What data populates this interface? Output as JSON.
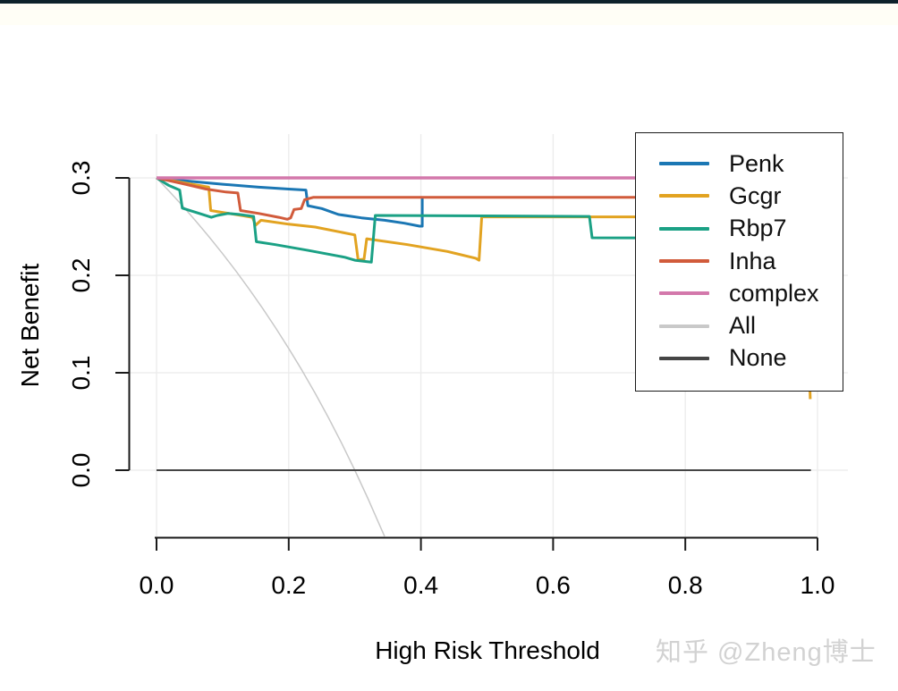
{
  "page": {
    "top_strip_color": "#0d222b",
    "background_color": "#ffffff"
  },
  "watermark": {
    "text": "知乎 @Zheng博士",
    "color": "#d2d2d2"
  },
  "chart_data": {
    "type": "line",
    "title": "",
    "xlabel": "High Risk Threshold",
    "ylabel": "Net Benefit",
    "xlim": [
      0.0,
      1.0
    ],
    "ylim": [
      -0.075,
      0.32
    ],
    "x_ticks": [
      0.0,
      0.2,
      0.4,
      0.6,
      0.8,
      1.0
    ],
    "x_tick_labels": [
      "0.0",
      "0.2",
      "0.4",
      "0.6",
      "0.8",
      "1.0"
    ],
    "y_ticks": [
      0.0,
      0.1,
      0.2,
      0.3
    ],
    "y_tick_labels": [
      "0.0",
      "0.1",
      "0.2",
      "0.3"
    ],
    "grid": true,
    "grid_color": "#ebebeb",
    "axis_color": "#1a1a1a",
    "legend_position": "top-right",
    "draw_order": [
      "All",
      "None",
      "Penk",
      "Gcgr",
      "Rbp7",
      "Inha",
      "complex"
    ],
    "series": [
      {
        "name": "Penk",
        "color": "#1b77b4",
        "width": 3,
        "points": [
          [
            0,
            0.3
          ],
          [
            0.05,
            0.2965
          ],
          [
            0.1,
            0.2935
          ],
          [
            0.155,
            0.2905
          ],
          [
            0.2,
            0.2885
          ],
          [
            0.226,
            0.2875
          ],
          [
            0.229,
            0.2715
          ],
          [
            0.25,
            0.2685
          ],
          [
            0.275,
            0.2625
          ],
          [
            0.31,
            0.259
          ],
          [
            0.345,
            0.2565
          ],
          [
            0.375,
            0.2535
          ],
          [
            0.398,
            0.2505
          ],
          [
            0.402,
            0.2505
          ],
          [
            0.402,
            0.279
          ]
        ]
      },
      {
        "name": "Gcgr",
        "color": "#e2a321",
        "width": 3,
        "points": [
          [
            0,
            0.3
          ],
          [
            0.045,
            0.2945
          ],
          [
            0.079,
            0.2905
          ],
          [
            0.082,
            0.2665
          ],
          [
            0.11,
            0.2635
          ],
          [
            0.145,
            0.2595
          ],
          [
            0.15,
            0.2515
          ],
          [
            0.158,
            0.2565
          ],
          [
            0.2,
            0.2525
          ],
          [
            0.24,
            0.2495
          ],
          [
            0.3,
            0.2415
          ],
          [
            0.305,
            0.216
          ],
          [
            0.314,
            0.2165
          ],
          [
            0.318,
            0.2375
          ],
          [
            0.38,
            0.2315
          ],
          [
            0.44,
            0.2245
          ],
          [
            0.483,
            0.2175
          ],
          [
            0.488,
            0.2155
          ],
          [
            0.492,
            0.26
          ],
          [
            0.98,
            0.26
          ],
          [
            0.989,
            0.073
          ]
        ]
      },
      {
        "name": "Rbp7",
        "color": "#1ba185",
        "width": 3,
        "points": [
          [
            0,
            0.3
          ],
          [
            0.018,
            0.2925
          ],
          [
            0.035,
            0.2875
          ],
          [
            0.039,
            0.269
          ],
          [
            0.065,
            0.2635
          ],
          [
            0.083,
            0.2595
          ],
          [
            0.092,
            0.2615
          ],
          [
            0.108,
            0.2635
          ],
          [
            0.125,
            0.2625
          ],
          [
            0.147,
            0.2605
          ],
          [
            0.151,
            0.2345
          ],
          [
            0.18,
            0.2315
          ],
          [
            0.23,
            0.2255
          ],
          [
            0.285,
            0.2185
          ],
          [
            0.3,
            0.2155
          ],
          [
            0.325,
            0.2135
          ],
          [
            0.331,
            0.2615
          ],
          [
            0.5,
            0.261
          ],
          [
            0.655,
            0.2605
          ],
          [
            0.659,
            0.2385
          ],
          [
            1.0,
            0.238
          ]
        ]
      },
      {
        "name": "Inha",
        "color": "#d15b3b",
        "width": 3,
        "points": [
          [
            0,
            0.3
          ],
          [
            0.04,
            0.294
          ],
          [
            0.075,
            0.2885
          ],
          [
            0.105,
            0.2855
          ],
          [
            0.123,
            0.2845
          ],
          [
            0.127,
            0.2665
          ],
          [
            0.155,
            0.2635
          ],
          [
            0.185,
            0.2595
          ],
          [
            0.198,
            0.2575
          ],
          [
            0.203,
            0.259
          ],
          [
            0.208,
            0.2675
          ],
          [
            0.219,
            0.2685
          ],
          [
            0.224,
            0.2775
          ],
          [
            0.237,
            0.28
          ],
          [
            1.0,
            0.28
          ]
        ]
      },
      {
        "name": "complex",
        "color": "#d378ab",
        "width": 3.5,
        "points": [
          [
            0,
            0.3
          ],
          [
            1.0,
            0.3
          ]
        ]
      },
      {
        "name": "All",
        "color": "#c9c9c9",
        "width": 1.5,
        "points": [
          [
            0,
            0.3
          ],
          [
            0.02,
            0.2857
          ],
          [
            0.04,
            0.2708
          ],
          [
            0.06,
            0.2553
          ],
          [
            0.08,
            0.2391
          ],
          [
            0.1,
            0.2222
          ],
          [
            0.12,
            0.2045
          ],
          [
            0.14,
            0.186
          ],
          [
            0.16,
            0.1667
          ],
          [
            0.18,
            0.1463
          ],
          [
            0.2,
            0.125
          ],
          [
            0.22,
            0.1026
          ],
          [
            0.24,
            0.0789
          ],
          [
            0.26,
            0.0541
          ],
          [
            0.28,
            0.0278
          ],
          [
            0.3,
            0.0
          ],
          [
            0.32,
            -0.0294
          ],
          [
            0.335,
            -0.0526
          ],
          [
            0.345,
            -0.068
          ]
        ]
      },
      {
        "name": "None",
        "color": "#454545",
        "width": 2,
        "points": [
          [
            0,
            0.0
          ],
          [
            0.99,
            0.0
          ]
        ]
      }
    ]
  }
}
